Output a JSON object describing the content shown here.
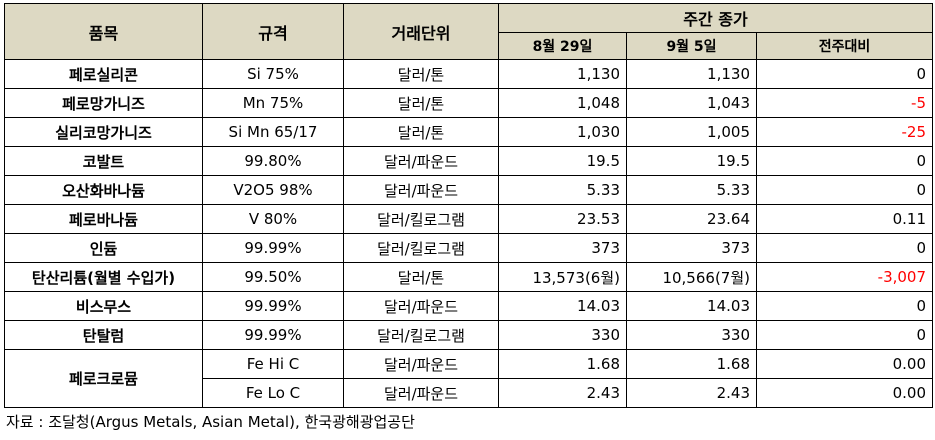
{
  "headers": {
    "item": "품목",
    "spec": "규격",
    "unit": "거래단위",
    "weekly": "주간 종가",
    "date1": "8월 29일",
    "date2": "9월 5일",
    "change": "전주대비"
  },
  "rows": [
    {
      "name": "페로실리콘",
      "spec": "Si 75%",
      "unit": "달러/톤",
      "v1": "1,130",
      "v2": "1,130",
      "chg": "0",
      "neg": false
    },
    {
      "name": "페로망가니즈",
      "spec": "Mn 75%",
      "unit": "달러/톤",
      "v1": "1,048",
      "v2": "1,043",
      "chg": "-5",
      "neg": true
    },
    {
      "name": "실리코망가니즈",
      "spec": "Si Mn 65/17",
      "unit": "달러/톤",
      "v1": "1,030",
      "v2": "1,005",
      "chg": "-25",
      "neg": true
    },
    {
      "name": "코발트",
      "spec": "99.80%",
      "unit": "달러/파운드",
      "v1": "19.5",
      "v2": "19.5",
      "chg": "0",
      "neg": false
    },
    {
      "name": "오산화바나듐",
      "spec": "V2O5 98%",
      "unit": "달러/파운드",
      "v1": "5.33",
      "v2": "5.33",
      "chg": "0",
      "neg": false
    },
    {
      "name": "페로바나듐",
      "spec": "V 80%",
      "unit": "달러/킬로그램",
      "v1": "23.53",
      "v2": "23.64",
      "chg": "0.11",
      "neg": false
    },
    {
      "name": "인듐",
      "spec": "99.99%",
      "unit": "달러/킬로그램",
      "v1": "373",
      "v2": "373",
      "chg": "0",
      "neg": false
    },
    {
      "name": "탄산리튬(월별 수입가)",
      "spec": "99.50%",
      "unit": "달러/톤",
      "v1": "13,573(6월)",
      "v2": "10,566(7월)",
      "chg": "-3,007",
      "neg": true
    },
    {
      "name": "비스무스",
      "spec": "99.99%",
      "unit": "달러/파운드",
      "v1": "14.03",
      "v2": "14.03",
      "chg": "0",
      "neg": false
    },
    {
      "name": "탄탈럼",
      "spec": "99.99%",
      "unit": "달러/킬로그램",
      "v1": "330",
      "v2": "330",
      "chg": "0",
      "neg": false
    }
  ],
  "ferrochrome": {
    "name": "페로크로뮴",
    "sub": [
      {
        "spec": "Fe Hi C",
        "unit": "달러/파운드",
        "v1": "1.68",
        "v2": "1.68",
        "chg": "0.00"
      },
      {
        "spec": "Fe Lo C",
        "unit": "달러/파운드",
        "v1": "2.43",
        "v2": "2.43",
        "chg": "0.00"
      }
    ]
  },
  "source": "자료 : 조달청(Argus Metals, Asian Metal), 한국광해광업공단",
  "colors": {
    "header_bg": "#ddd9c3",
    "negative": "#ff0000"
  }
}
